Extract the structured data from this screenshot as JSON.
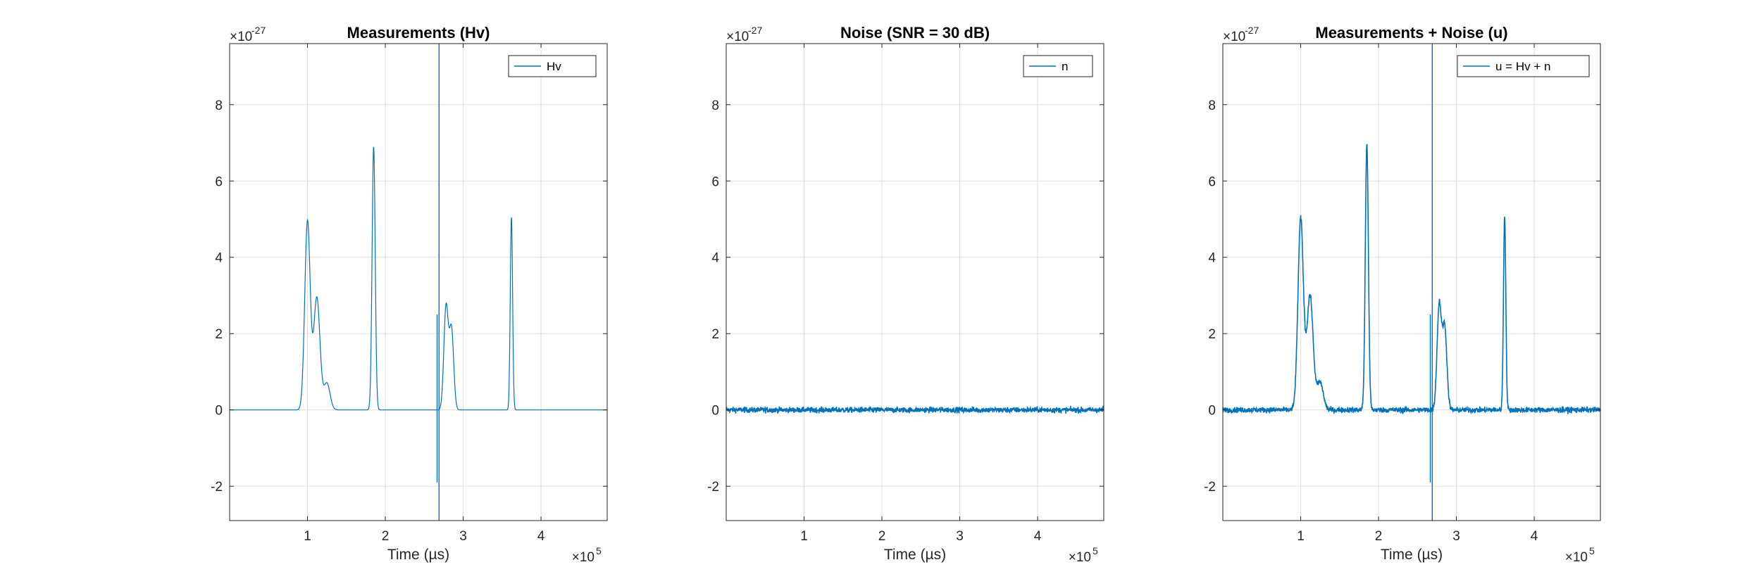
{
  "chart_data": [
    {
      "type": "line",
      "title": "Measurements (Hv)",
      "xlabel": "Time (µs)",
      "ylabel": "",
      "x_multiplier": "×10",
      "x_multiplier_exp": "5",
      "y_multiplier": "×10",
      "y_multiplier_exp": "-27",
      "xlim": [
        0,
        4.85
      ],
      "ylim": [
        -2.9,
        9.6
      ],
      "xticks": [
        1,
        2,
        3,
        4
      ],
      "yticks": [
        -2,
        0,
        2,
        4,
        6,
        8
      ],
      "grid": true,
      "legend_position": "top-right",
      "noise": 0,
      "color": "#0072BD",
      "series": [
        {
          "name": "Hv",
          "pulses": [
            {
              "x": 1.0,
              "peak": 4.95,
              "width": 0.035
            },
            {
              "x": 1.12,
              "peak": 2.95,
              "width": 0.04
            },
            {
              "x": 1.25,
              "peak": 0.7,
              "width": 0.04
            },
            {
              "x": 1.85,
              "peak": 6.9,
              "width": 0.02
            },
            {
              "x": 2.78,
              "peak": 2.7,
              "width": 0.028
            },
            {
              "x": 2.85,
              "peak": 2.1,
              "width": 0.028
            },
            {
              "x": 3.62,
              "peak": 5.05,
              "width": 0.015
            }
          ],
          "spikes": [
            {
              "x": 2.69,
              "min": -2.9,
              "max": 9.6
            },
            {
              "x": 2.665,
              "min": -1.9,
              "max": 2.5
            }
          ]
        }
      ]
    },
    {
      "type": "line",
      "title": "Noise (SNR = 30 dB)",
      "xlabel": "Time (µs)",
      "ylabel": "",
      "x_multiplier": "×10",
      "x_multiplier_exp": "5",
      "y_multiplier": "×10",
      "y_multiplier_exp": "-27",
      "xlim": [
        0,
        4.85
      ],
      "ylim": [
        -2.9,
        9.6
      ],
      "xticks": [
        1,
        2,
        3,
        4
      ],
      "yticks": [
        -2,
        0,
        2,
        4,
        6,
        8
      ],
      "grid": true,
      "legend_position": "top-right",
      "noise": 0.07,
      "color": "#0072BD",
      "series": [
        {
          "name": "n",
          "pulses": [],
          "spikes": []
        }
      ]
    },
    {
      "type": "line",
      "title": "Measurements + Noise (u)",
      "xlabel": "Time (µs)",
      "ylabel": "",
      "x_multiplier": "×10",
      "x_multiplier_exp": "5",
      "y_multiplier": "×10",
      "y_multiplier_exp": "-27",
      "xlim": [
        0,
        4.85
      ],
      "ylim": [
        -2.9,
        9.6
      ],
      "xticks": [
        1,
        2,
        3,
        4
      ],
      "yticks": [
        -2,
        0,
        2,
        4,
        6,
        8
      ],
      "grid": true,
      "legend_position": "top-right",
      "noise": 0.07,
      "color": "#0072BD",
      "series": [
        {
          "name": "u = Hv + n",
          "pulses": [
            {
              "x": 1.0,
              "peak": 5.0,
              "width": 0.035
            },
            {
              "x": 1.12,
              "peak": 3.0,
              "width": 0.04
            },
            {
              "x": 1.25,
              "peak": 0.72,
              "width": 0.04
            },
            {
              "x": 1.85,
              "peak": 6.95,
              "width": 0.02
            },
            {
              "x": 2.78,
              "peak": 2.75,
              "width": 0.028
            },
            {
              "x": 2.85,
              "peak": 2.15,
              "width": 0.028
            },
            {
              "x": 3.62,
              "peak": 5.1,
              "width": 0.015
            }
          ],
          "spikes": [
            {
              "x": 2.69,
              "min": -2.9,
              "max": 9.6
            },
            {
              "x": 2.665,
              "min": -1.9,
              "max": 2.5
            }
          ]
        }
      ]
    }
  ]
}
